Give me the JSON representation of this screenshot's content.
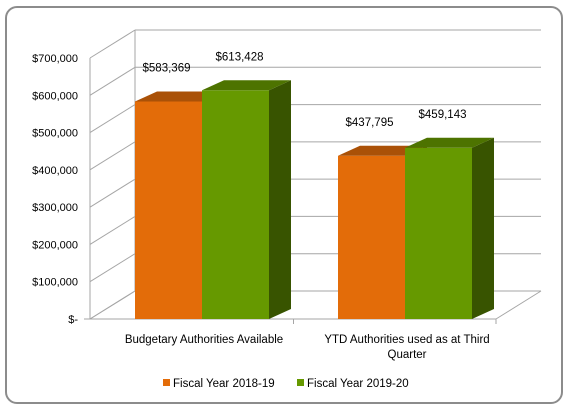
{
  "chart_data": {
    "type": "bar",
    "categories": [
      "Budgetary Authorities Available",
      "YTD Authorities used as at Third Quarter"
    ],
    "category_lines": [
      [
        "Budgetary Authorities Available"
      ],
      [
        "YTD Authorities used as at Third",
        "Quarter"
      ]
    ],
    "series": [
      {
        "name": "Fiscal Year 2018-19",
        "values": [
          583369,
          437795
        ],
        "labels": [
          "$583,369",
          "$437,795"
        ],
        "color": "#E36C09"
      },
      {
        "name": "Fiscal Year 2019-20",
        "values": [
          613428,
          459143
        ],
        "labels": [
          "$613,428",
          "$459,143"
        ],
        "color": "#669900"
      }
    ],
    "y_ticks": [
      {
        "value": 0,
        "label": "$-"
      },
      {
        "value": 100000,
        "label": "$100,000"
      },
      {
        "value": 200000,
        "label": "$200,000"
      },
      {
        "value": 300000,
        "label": "$300,000"
      },
      {
        "value": 400000,
        "label": "$400,000"
      },
      {
        "value": 500000,
        "label": "$500,000"
      },
      {
        "value": 600000,
        "label": "$600,000"
      },
      {
        "value": 700000,
        "label": "$700,000"
      }
    ],
    "ylim": [
      0,
      700000
    ],
    "grid": true,
    "legend_position": "bottom",
    "title": "",
    "xlabel": "",
    "ylabel": ""
  }
}
